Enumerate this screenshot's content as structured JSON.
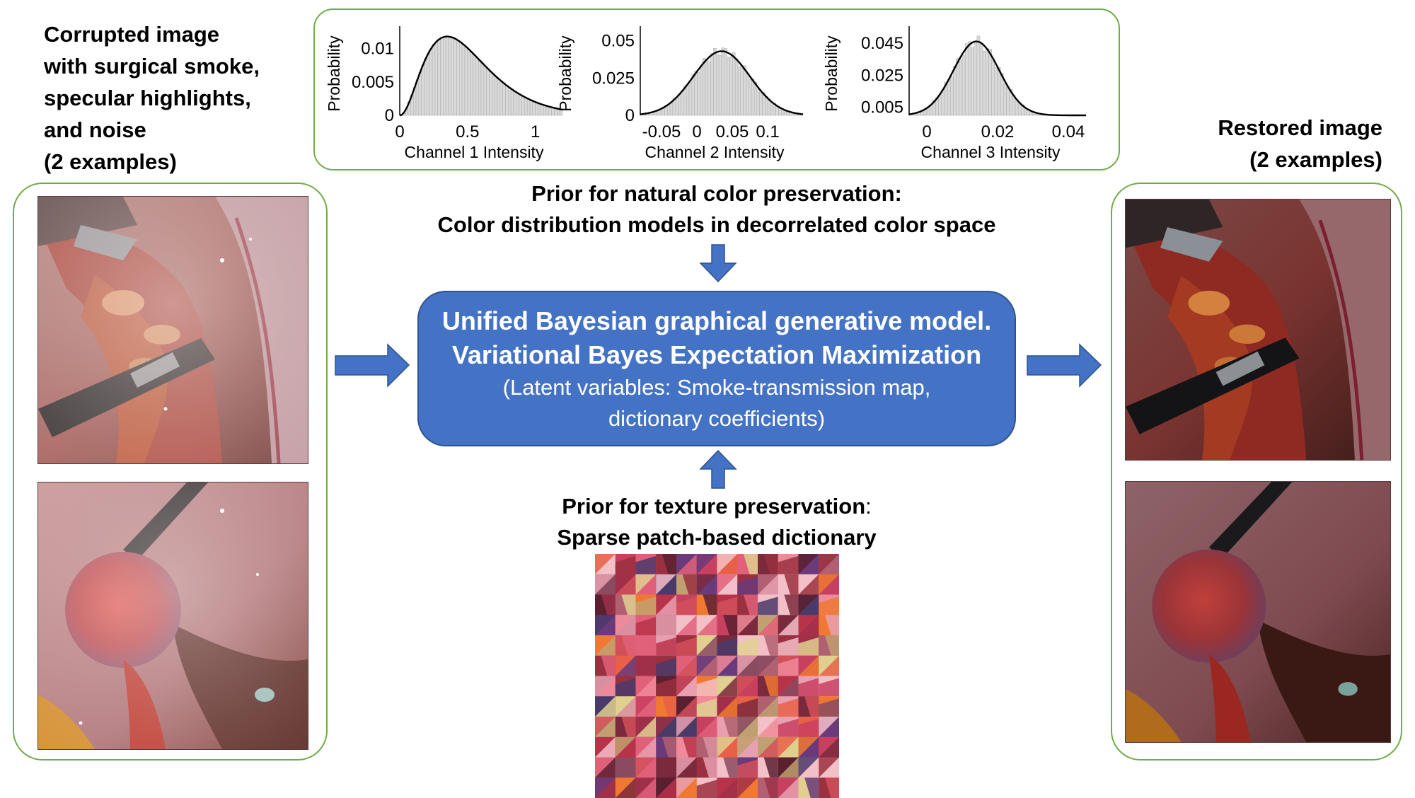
{
  "input": {
    "heading_lines": [
      "Corrupted image",
      "with surgical smoke,",
      "specular highlights,",
      "and noise",
      "(2 examples)"
    ]
  },
  "output": {
    "heading_lines": [
      "Restored image",
      "(2 examples)"
    ]
  },
  "color_prior": {
    "line1": "Prior for natural color preservation:",
    "line2": "Color distribution models in decorrelated color space"
  },
  "model": {
    "line1": "Unified Bayesian graphical generative model.",
    "line2": "Variational Bayes Expectation Maximization",
    "line3": "(Latent variables: Smoke-transmission map,",
    "line4": "dictionary coefficients)"
  },
  "texture_prior": {
    "line1_bold": "Prior for texture preservation",
    "line1_rest": ":",
    "line2": "Sparse patch-based dictionary"
  },
  "colors": {
    "panel_border": "#70ad47",
    "arrow": "#4472c4",
    "box_fill": "#4472c4",
    "box_border": "#2f528f"
  },
  "chart_data": [
    {
      "type": "histogram",
      "xlabel": "Channel 1 Intensity",
      "ylabel": "Probability",
      "xticks": [
        "0",
        "0.5",
        "1"
      ],
      "yticks": [
        "0",
        "0.005",
        "0.01"
      ],
      "xlim": [
        0,
        1.2
      ],
      "ylim": [
        0,
        0.0125
      ],
      "fit": {
        "dist": "skewed",
        "peak_x": 0.35,
        "peak_y": 0.0118
      }
    },
    {
      "type": "histogram",
      "xlabel": "Channel 2 Intensity",
      "ylabel": "Probability",
      "xticks": [
        "-0.05",
        "0",
        "0.05",
        "0.1"
      ],
      "yticks": [
        "0",
        "0.025",
        "0.05"
      ],
      "xlim": [
        -0.08,
        0.15
      ],
      "ylim": [
        0,
        0.056
      ],
      "fit": {
        "dist": "gaussian",
        "mean": 0.035,
        "sd": 0.04,
        "peak_y": 0.043
      }
    },
    {
      "type": "histogram",
      "xlabel": "Channel 3 Intensity",
      "ylabel": "Probability",
      "xticks": [
        "0",
        "0.02",
        "0.04"
      ],
      "yticks": [
        "0.005",
        "0.025",
        "0.045"
      ],
      "xlim": [
        -0.005,
        0.045
      ],
      "ylim": [
        0,
        0.052
      ],
      "fit": {
        "dist": "gaussian",
        "mean": 0.014,
        "sd": 0.0065,
        "peak_y": 0.046
      }
    }
  ]
}
